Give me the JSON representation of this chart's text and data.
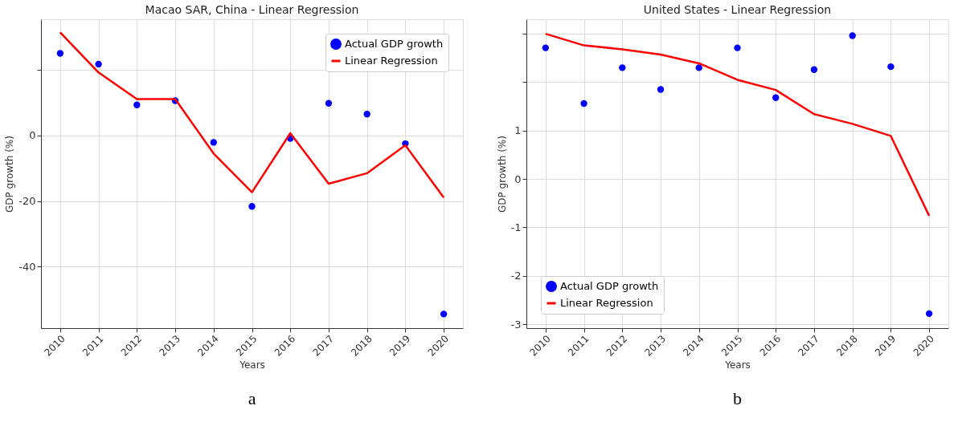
{
  "chart_data": [
    {
      "type": "scatter",
      "title": "Macao SAR, China - Linear Regression",
      "xlabel": "Years",
      "ylabel": "GDP growth (%)",
      "categories": [
        "2010",
        "2011",
        "2012",
        "2013",
        "2014",
        "2015",
        "2016",
        "2017",
        "2018",
        "2019",
        "2020"
      ],
      "series": [
        {
          "name": "Actual GDP growth",
          "color": "#0000ff",
          "marker": "circle",
          "values": [
            25.0,
            21.7,
            9.3,
            10.6,
            -2.1,
            -21.6,
            -0.9,
            9.8,
            6.5,
            -2.5,
            -54.4
          ]
        },
        {
          "name": "Linear Regression",
          "type": "line",
          "color": "#ff0000",
          "values": [
            31.4,
            19.2,
            11.1,
            11.1,
            -5.5,
            -17.3,
            0.7,
            -14.7,
            -11.5,
            -3.0,
            -18.9
          ]
        }
      ],
      "ylim": [
        -58.7,
        35.4
      ],
      "yticks": [
        -40,
        -20,
        0,
        {
          "value": 20,
          "label": null
        }
      ],
      "grid": true,
      "legend": "top right",
      "annotations": [
        "a"
      ]
    },
    {
      "type": "scatter",
      "title": "United States - Linear Regression",
      "xlabel": "Years",
      "ylabel": "GDP growth (%)",
      "categories": [
        "2010",
        "2011",
        "2012",
        "2013",
        "2014",
        "2015",
        "2016",
        "2017",
        "2018",
        "2019",
        "2020"
      ],
      "series": [
        {
          "name": "Actual GDP growth",
          "color": "#0000ff",
          "marker": "circle",
          "values": [
            2.71,
            1.56,
            2.3,
            1.85,
            2.3,
            2.71,
            1.68,
            2.26,
            2.96,
            2.32,
            -2.78
          ]
        },
        {
          "name": "Linear Regression",
          "type": "line",
          "color": "#ff0000",
          "values": [
            3.0,
            2.76,
            2.68,
            2.57,
            2.39,
            2.05,
            1.84,
            1.34,
            1.14,
            0.89,
            -0.76
          ]
        }
      ],
      "ylim": [
        -3.08,
        3.3
      ],
      "yticks": [
        -3,
        -2,
        -1,
        0,
        1,
        {
          "value": 2,
          "label": null
        },
        {
          "value": 3,
          "label": null
        }
      ],
      "grid": true,
      "legend": "bottom left",
      "annotations": [
        "b"
      ]
    }
  ]
}
